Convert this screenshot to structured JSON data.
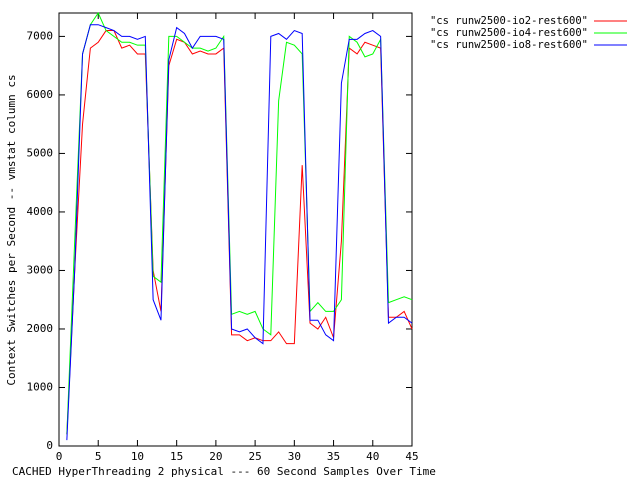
{
  "chart_data": {
    "type": "line",
    "x_label": "CACHED HyperThreading 2 physical --- 60 Second Samples Over Time",
    "y_label": "Context Switches per Second -- vmstat column cs",
    "x": [
      1,
      2,
      3,
      4,
      5,
      6,
      7,
      8,
      9,
      10,
      11,
      12,
      13,
      14,
      15,
      16,
      17,
      18,
      19,
      20,
      21,
      22,
      23,
      24,
      25,
      26,
      27,
      28,
      29,
      30,
      31,
      32,
      33,
      34,
      35,
      36,
      37,
      38,
      39,
      40,
      41,
      42,
      43,
      44,
      45
    ],
    "series": [
      {
        "name": "\"cs runw2500-io2-rest600\"",
        "color": "#ff0000",
        "values": [
          200,
          3000,
          5500,
          6800,
          6900,
          7100,
          7100,
          6800,
          6850,
          6700,
          6700,
          3000,
          2300,
          6500,
          6950,
          6900,
          6700,
          6750,
          6700,
          6700,
          6800,
          1900,
          1900,
          1800,
          1850,
          1800,
          1800,
          1950,
          1750,
          1750,
          4800,
          2100,
          2000,
          2200,
          1850,
          3500,
          6800,
          6700,
          6900,
          6850,
          6800,
          2200,
          2200,
          2300,
          2000
        ]
      },
      {
        "name": "\"cs runw2500-io4-rest600\"",
        "color": "#00ff00",
        "values": [
          200,
          3500,
          6700,
          7200,
          7400,
          7100,
          7000,
          6900,
          6900,
          6850,
          6850,
          2900,
          2800,
          7000,
          7000,
          6900,
          6800,
          6800,
          6750,
          6800,
          7000,
          2250,
          2300,
          2250,
          2300,
          2000,
          1900,
          5900,
          6900,
          6850,
          6700,
          2300,
          2450,
          2300,
          2300,
          2500,
          7000,
          6900,
          6650,
          6700,
          6950,
          2450,
          2500,
          2550,
          2500
        ]
      },
      {
        "name": "\"cs runw2500-io8-rest600\"",
        "color": "#0000ff",
        "values": [
          100,
          3000,
          6700,
          7200,
          7200,
          7150,
          7100,
          7000,
          7000,
          6950,
          7000,
          2500,
          2150,
          6600,
          7150,
          7050,
          6800,
          7000,
          7000,
          7000,
          6950,
          2000,
          1950,
          2000,
          1850,
          1750,
          7000,
          7050,
          6950,
          7100,
          7050,
          2150,
          2150,
          1900,
          1800,
          6200,
          6950,
          6950,
          7050,
          7100,
          7000,
          2100,
          2200,
          2200,
          2100
        ]
      }
    ],
    "xlim": [
      0,
      45
    ],
    "xticks": [
      0,
      5,
      10,
      15,
      20,
      25,
      30,
      35,
      40,
      45
    ],
    "ylim": [
      0,
      7400
    ],
    "yticks": [
      0,
      1000,
      2000,
      3000,
      4000,
      5000,
      6000,
      7000
    ],
    "legend": "top-right"
  }
}
